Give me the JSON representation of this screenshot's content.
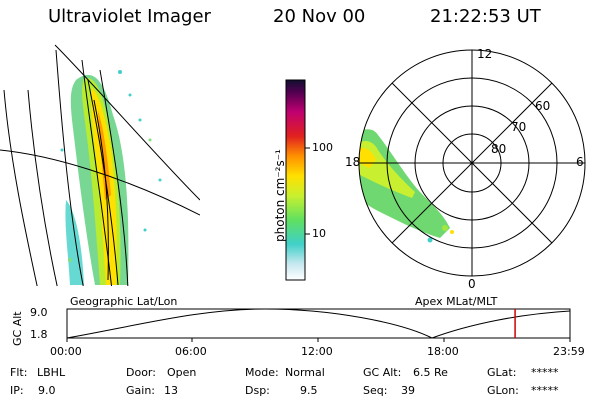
{
  "header": {
    "instrument": "Ultraviolet Imager",
    "date": "20 Nov 00",
    "time": "21:22:53 UT"
  },
  "colorbar": {
    "unit_label": "photon cm⁻²s⁻¹",
    "ticks": [
      "100",
      "10"
    ]
  },
  "polar": {
    "mlt_labels": [
      "12",
      "18",
      "6",
      "0"
    ],
    "mlat_labels": [
      "60",
      "70",
      "80"
    ]
  },
  "map_titles": {
    "left": "Geographic Lat/Lon",
    "right": "Apex MLat/MLT"
  },
  "altitude_plot": {
    "ylabel": "GC Alt",
    "y_ticks": [
      "9.0",
      "1.8"
    ],
    "x_ticks": [
      "00:00",
      "06:00",
      "12:00",
      "18:00",
      "23:59"
    ],
    "ylim": [
      1.8,
      9.0
    ],
    "current_time_hours": 21.38
  },
  "status": {
    "flt_label": "Flt:",
    "flt_value": "LBHL",
    "ip_label": "IP:",
    "ip_value": "9.0",
    "door_label": "Door:",
    "door_value": "Open",
    "gain_label": "Gain:",
    "gain_value": "13",
    "mode_label": "Mode:",
    "mode_value": "Normal",
    "dsp_label": "Dsp:",
    "dsp_value": "9.5",
    "gcalt_label": "GC Alt:",
    "gcalt_value": "6.5 Re",
    "seq_label": "Seq:",
    "seq_value": "39",
    "glat_label": "GLat:",
    "glat_value": "*****",
    "glon_label": "GLon:",
    "glon_value": "*****"
  },
  "colors": {
    "marker": "#d00000"
  }
}
